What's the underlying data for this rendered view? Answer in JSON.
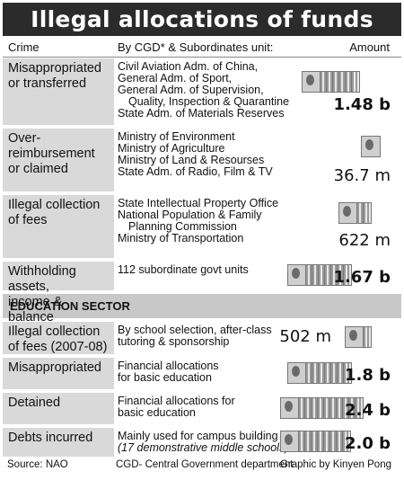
{
  "title": "Illegal allocations of funds",
  "header": {
    "crime": "Crime",
    "units": "By CGD* & Subordinates unit:",
    "amount": "Amount"
  },
  "section_label": "EDUCATION SECTOR",
  "chart_data": {
    "type": "table",
    "title": "Illegal allocations of funds",
    "columns": [
      "Crime",
      "By CGD* & Subordinates unit:",
      "Amount"
    ],
    "rows": [
      {
        "crime": [
          "Misappropriated",
          "or transferred"
        ],
        "units": [
          "Civil Aviation Adm. of China,",
          "General Adm. of Sport,",
          "General Adm. of Supervision,",
          "   Quality, Inspection & Quarantine",
          "State Adm. of Materials Reserves"
        ],
        "amount": "1.48 b",
        "value_yuan": 1480000000
      },
      {
        "crime": [
          "Over-",
          "reimbursement",
          "or claimed"
        ],
        "units": [
          "Ministry of Environment",
          "Ministry of Agriculture",
          "Ministry of Land & Resourses",
          "State Adm. of Radio, Film & TV"
        ],
        "amount": "36.7 m",
        "value_yuan": 36700000
      },
      {
        "crime": [
          "Illegal collection",
          "of fees"
        ],
        "units": [
          "State Intellectual Property Office",
          "National Population & Family",
          "   Planning Commission",
          "Ministry of Transportation"
        ],
        "amount": "622 m",
        "value_yuan": 622000000
      },
      {
        "crime": [
          "Withholding assets,",
          "income & balance"
        ],
        "units": [
          "112 subordinate govt units"
        ],
        "amount": "1.67 b",
        "value_yuan": 1670000000
      },
      {
        "section": "EDUCATION SECTOR",
        "crime": [
          "Illegal collection",
          "of fees (2007-08)"
        ],
        "units": [
          "By school selection, after-class",
          "tutoring & sponsorship"
        ],
        "amount": "502 m",
        "value_yuan": 502000000
      },
      {
        "section": "EDUCATION SECTOR",
        "crime": [
          "Misappropriated"
        ],
        "units": [
          "Financial allocations",
          "for basic education"
        ],
        "amount": "1.8 b",
        "value_yuan": 1800000000
      },
      {
        "section": "EDUCATION SECTOR",
        "crime": [
          "Detained"
        ],
        "units": [
          "Financial allocations for",
          "basic education"
        ],
        "amount": "2.4 b",
        "value_yuan": 2400000000
      },
      {
        "section": "EDUCATION SECTOR",
        "crime": [
          "Debts incurred"
        ],
        "units": [
          "Mainly used for campus building",
          "(17 demonstrative middle schools)"
        ],
        "amount": "2.0 b",
        "value_yuan": 2000000000
      }
    ]
  },
  "footer": {
    "source": "Source: NAO",
    "note": "CGD- Central Government department",
    "credit": "Graphic by Kinyen Pong"
  },
  "colors": {
    "title_bg": "#2b2b2b",
    "shade": "#d9d9d9",
    "section_bg": "#c8c8c8"
  }
}
